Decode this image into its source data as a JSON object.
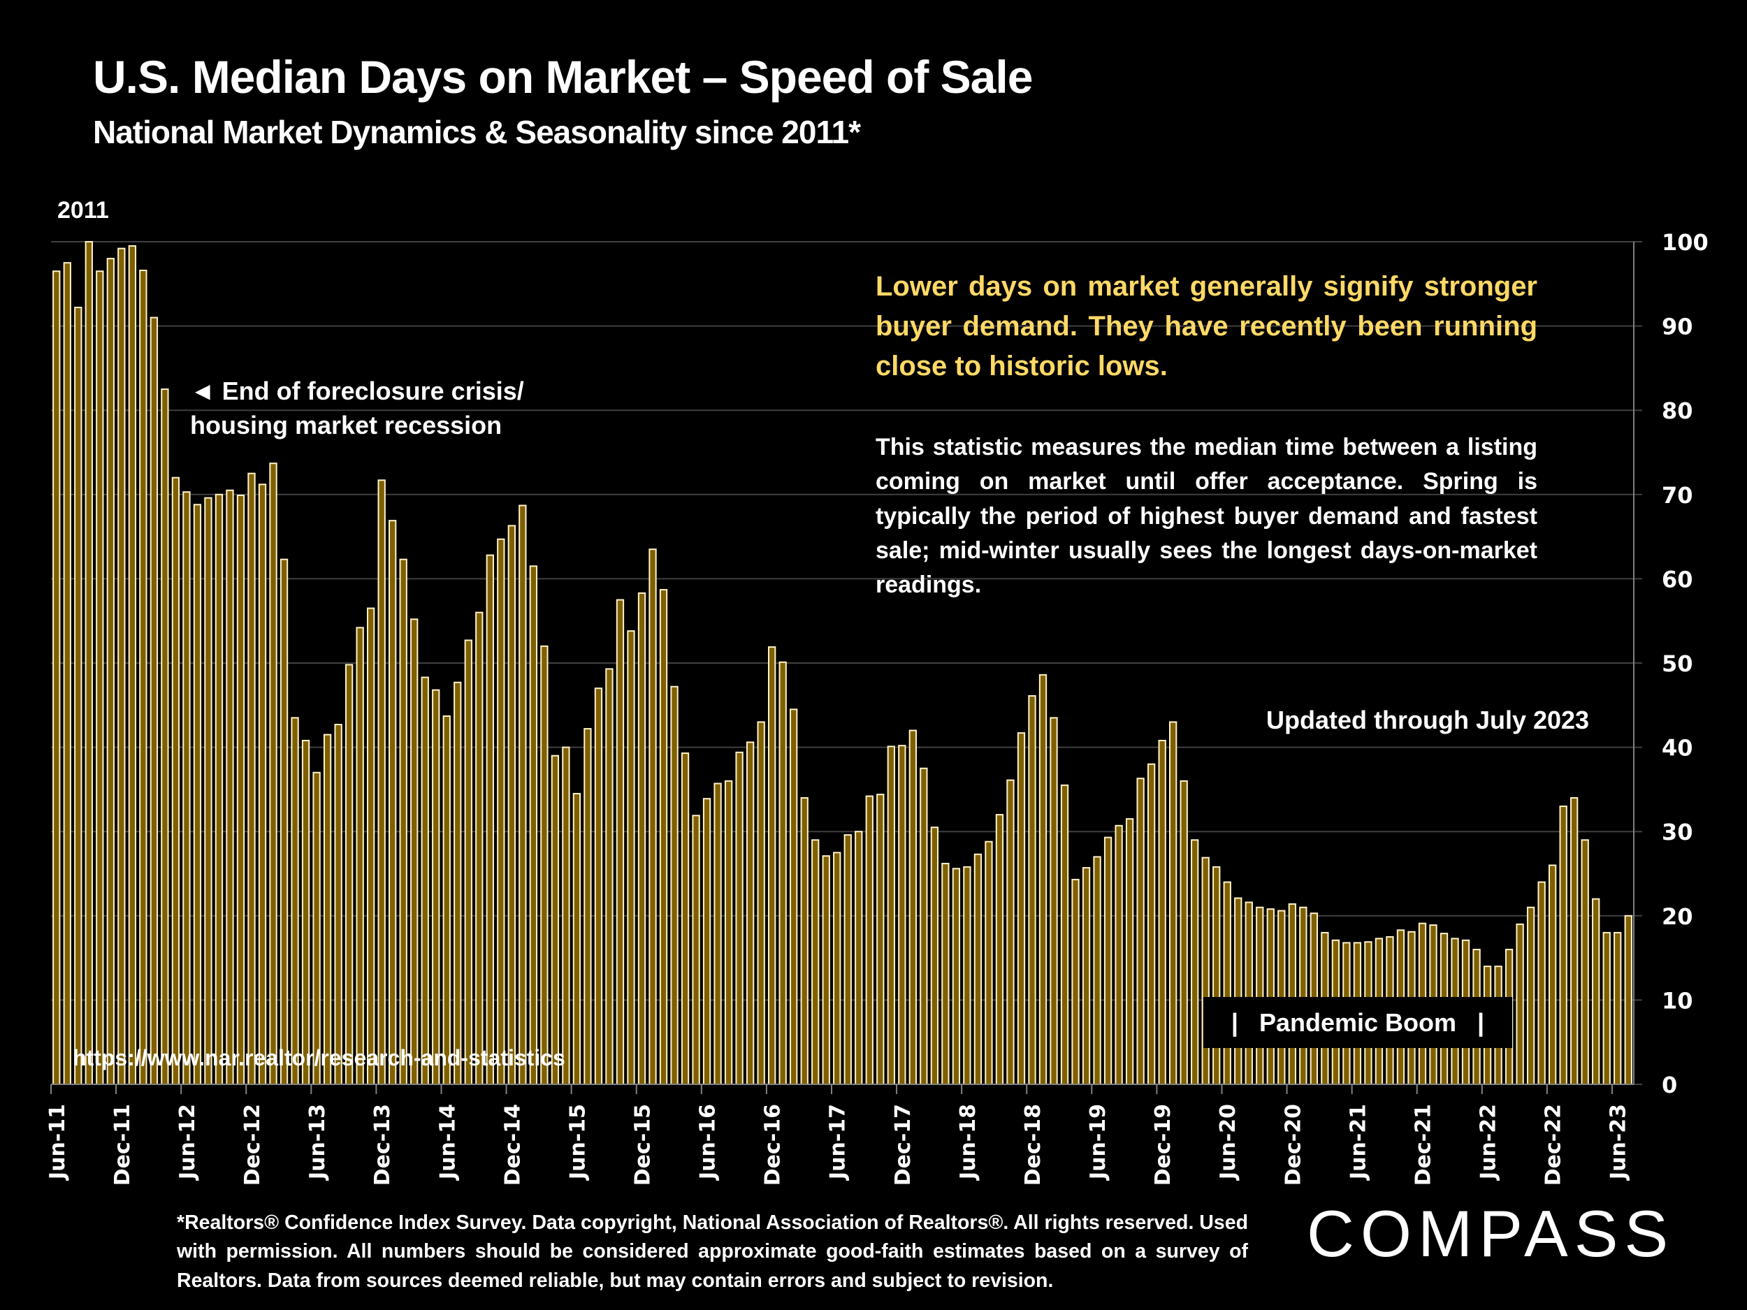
{
  "header": {
    "title": "U.S. Median Days on Market – Speed of Sale",
    "subtitle": "National Market Dynamics & Seasonality since 2011*",
    "start_year_label": "2011"
  },
  "annotations": {
    "foreclosure_line1": "◄ End of foreclosure crisis/",
    "foreclosure_line2": "housing market recession",
    "lead_text": "Lower days on market generally signify stronger buyer demand. They have recently been running close to historic lows.",
    "body_text": "This statistic measures the median time between a listing coming on market until offer acceptance. Spring is typically the period of highest buyer demand and fastest sale; mid-winter usually sees the longest days-on-market readings.",
    "updated": "Updated through July 2023",
    "pandemic_boom": "|   Pandemic Boom   |",
    "source_url": "https://www.nar.realtor/research-and-statistics"
  },
  "footer": {
    "disclaimer": "*Realtors® Confidence Index Survey. Data copyright, National Association of Realtors®. All rights reserved. Used with permission. All numbers should be considered approximate good-faith estimates based on a survey of Realtors. Data from sources deemed reliable, but may contain errors and subject to revision.",
    "logo": "COMPASS"
  },
  "colors": {
    "bar_fill": "#7F6000",
    "bar_outline": "#FFF2CC",
    "accent_text": "#FFD966",
    "gridline": "#404040",
    "background": "#000000"
  },
  "chart_data": {
    "type": "bar",
    "title": "U.S. Median Days on Market – Speed of Sale",
    "xlabel": "",
    "ylabel": "Median Days on Market",
    "y_axis_side": "right",
    "ylim": [
      0,
      100
    ],
    "yticks": [
      0,
      10,
      20,
      30,
      40,
      50,
      60,
      70,
      80,
      90,
      100
    ],
    "grid": true,
    "start_month": "Jun-11",
    "end_month": "Jul-23",
    "xtick_labels": [
      "Jun-11",
      "Dec-11",
      "Jun-12",
      "Dec-12",
      "Jun-13",
      "Dec-13",
      "Jun-14",
      "Dec-14",
      "Jun-15",
      "Dec-15",
      "Jun-16",
      "Dec-16",
      "Jun-17",
      "Dec-17",
      "Jun-18",
      "Dec-18",
      "Jun-19",
      "Dec-19",
      "Jun-20",
      "Dec-20",
      "Jun-21",
      "Dec-21",
      "Jun-22",
      "Dec-22",
      "Jun-23"
    ],
    "xtick_every": 6,
    "series": [
      {
        "name": "Median Days on Market",
        "values": [
          96.5,
          97.5,
          92.2,
          100,
          96.5,
          98,
          99.2,
          99.5,
          96.6,
          91,
          82.5,
          72,
          70.3,
          68.8,
          69.6,
          70,
          70.5,
          69.9,
          72.5,
          71.2,
          73.7,
          62.3,
          43.5,
          40.8,
          37,
          41.5,
          42.7,
          49.8,
          54.2,
          56.5,
          71.7,
          66.9,
          62.3,
          55.2,
          48.3,
          46.8,
          43.7,
          47.7,
          52.7,
          56,
          62.8,
          64.7,
          66.3,
          68.7,
          61.5,
          52,
          39,
          40,
          34.5,
          42.2,
          47,
          49.3,
          57.5,
          53.8,
          58.3,
          63.5,
          58.7,
          47.2,
          39.3,
          31.9,
          33.9,
          35.7,
          36,
          39.4,
          40.6,
          43,
          51.9,
          50.1,
          44.5,
          34,
          29,
          27.1,
          27.5,
          29.6,
          30,
          34.2,
          34.4,
          40.1,
          40.2,
          42,
          37.5,
          30.5,
          26.2,
          25.6,
          25.8,
          27.3,
          28.8,
          32,
          36.1,
          41.7,
          46.1,
          48.6,
          43.5,
          35.5,
          24.3,
          25.7,
          27,
          29.3,
          30.7,
          31.5,
          36.3,
          38,
          40.8,
          43,
          36,
          29,
          26.9,
          25.8,
          24,
          22.1,
          21.6,
          21,
          20.8,
          20.6,
          21.4,
          21,
          20.3,
          18,
          17.1,
          16.8,
          16.8,
          16.9,
          17.3,
          17.5,
          18.3,
          18.1,
          19.1,
          18.9,
          17.9,
          17.3,
          17.1,
          16,
          14,
          14,
          16,
          19,
          21,
          24,
          26,
          33,
          34,
          29,
          22,
          18,
          18,
          20
        ]
      }
    ]
  }
}
